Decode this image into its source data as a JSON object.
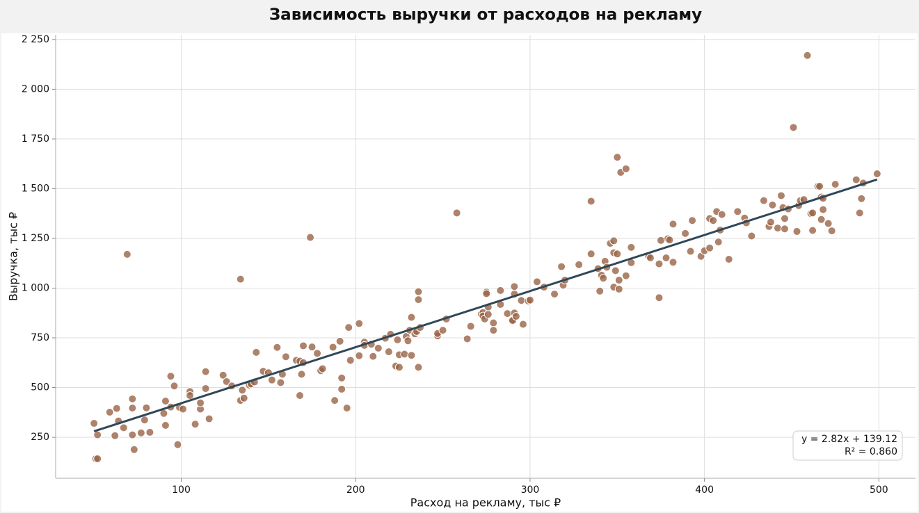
{
  "chart_data": {
    "type": "scatter",
    "title": "Зависимость выручки от расходов на рекламу",
    "xlabel": "Расход на рекламу, тыс ₽",
    "ylabel": "Выручка, тыс ₽",
    "color": "#9a6446",
    "grid": true,
    "xlim": [
      28,
      521
    ],
    "ylim": [
      44,
      2274
    ],
    "xticks": [
      100,
      200,
      300,
      400,
      500
    ],
    "yticks": [
      250,
      500,
      750,
      {
        "value": 1000,
        "label": "1 000"
      },
      {
        "value": 1250,
        "label": "1 250"
      },
      {
        "value": 1500,
        "label": "1 500"
      },
      {
        "value": 1750,
        "label": "1 750"
      },
      {
        "value": 2000,
        "label": "2 000"
      },
      {
        "value": 2250,
        "label": "2 250"
      }
    ],
    "x": [
      50,
      52,
      51,
      52,
      59,
      62,
      63,
      64,
      67,
      69,
      72,
      72,
      72,
      73,
      77,
      79,
      80,
      82,
      90,
      91,
      91,
      94,
      94,
      96,
      98,
      99,
      101,
      105,
      105,
      108,
      111,
      111,
      114,
      114,
      116,
      124,
      126,
      129,
      134,
      134,
      135,
      136,
      139,
      140,
      142,
      143,
      147,
      150,
      152,
      155,
      157,
      158,
      160,
      166,
      168,
      168,
      169,
      170,
      170,
      174,
      175,
      178,
      180,
      181,
      187,
      188,
      191,
      192,
      192,
      195,
      196,
      197,
      202,
      202,
      205,
      205,
      209,
      210,
      213,
      217,
      219,
      220,
      223,
      224,
      225,
      225,
      228,
      229,
      230,
      231,
      232,
      232,
      234,
      235,
      236,
      236,
      236,
      237,
      247,
      247,
      250,
      252,
      258,
      264,
      266,
      272,
      273,
      273,
      274,
      275,
      275,
      276,
      276,
      279,
      279,
      283,
      283,
      287,
      290,
      290,
      291,
      291,
      291,
      292,
      295,
      296,
      299,
      300,
      304,
      308,
      314,
      318,
      319,
      320,
      328,
      335,
      335,
      339,
      340,
      341,
      342,
      343,
      344,
      346,
      348,
      348,
      348,
      349,
      350,
      350,
      351,
      351,
      352,
      355,
      355,
      358,
      358,
      368,
      369,
      374,
      374,
      375,
      378,
      379,
      380,
      382,
      382,
      389,
      392,
      393,
      398,
      400,
      403,
      403,
      405,
      407,
      408,
      409,
      410,
      414,
      419,
      423,
      424,
      427,
      434,
      437,
      438,
      439,
      442,
      444,
      445,
      446,
      446,
      448,
      451,
      453,
      454,
      455,
      457,
      459,
      461,
      462,
      462,
      465,
      466,
      467,
      467,
      468,
      468,
      471,
      473,
      475,
      487,
      489,
      490,
      491,
      499
    ],
    "values": [
      320,
      262,
      142,
      142,
      376,
      258,
      395,
      332,
      298,
      1170,
      443,
      262,
      397,
      188,
      272,
      337,
      398,
      275,
      370,
      310,
      432,
      402,
      557,
      508,
      213,
      400,
      392,
      480,
      460,
      316,
      392,
      423,
      580,
      495,
      343,
      562,
      530,
      508,
      1045,
      435,
      487,
      447,
      513,
      518,
      528,
      677,
      582,
      575,
      538,
      702,
      525,
      567,
      655,
      637,
      633,
      460,
      567,
      625,
      710,
      1255,
      704,
      672,
      585,
      595,
      703,
      435,
      733,
      548,
      492,
      397,
      802,
      637,
      822,
      660,
      728,
      712,
      718,
      657,
      698,
      748,
      680,
      768,
      608,
      740,
      665,
      602,
      668,
      757,
      735,
      788,
      853,
      662,
      770,
      782,
      982,
      942,
      602,
      802,
      760,
      772,
      788,
      845,
      1378,
      745,
      808,
      870,
      877,
      860,
      845,
      980,
      972,
      905,
      868,
      825,
      788,
      988,
      918,
      872,
      840,
      837,
      1008,
      875,
      970,
      858,
      938,
      818,
      935,
      940,
      1032,
      1005,
      970,
      1108,
      1015,
      1040,
      1118,
      1437,
      1172,
      1098,
      985,
      1065,
      1050,
      1135,
      1105,
      1225,
      1005,
      1238,
      1178,
      1088,
      1172,
      1658,
      1040,
      995,
      1582,
      1600,
      1062,
      1205,
      1128,
      1160,
      1152,
      952,
      1122,
      1240,
      1152,
      1248,
      1242,
      1130,
      1322,
      1275,
      1185,
      1340,
      1160,
      1188,
      1350,
      1202,
      1340,
      1385,
      1232,
      1292,
      1370,
      1145,
      1385,
      1352,
      1328,
      1262,
      1440,
      1310,
      1332,
      1418,
      1302,
      1465,
      1405,
      1350,
      1298,
      1398,
      1808,
      1285,
      1415,
      1440,
      1445,
      2170,
      1375,
      1378,
      1290,
      1512,
      1512,
      1345,
      1458,
      1395,
      1452,
      1325,
      1288,
      1522,
      1545,
      1378,
      1450,
      1528,
      1575
    ],
    "trendline": {
      "color": "#2f4858",
      "x": [
        50,
        499
      ],
      "values": [
        280.12,
        1546.3
      ]
    },
    "annotations": [
      "y = 2.82x + 139.12",
      "R² = 0.860"
    ]
  }
}
